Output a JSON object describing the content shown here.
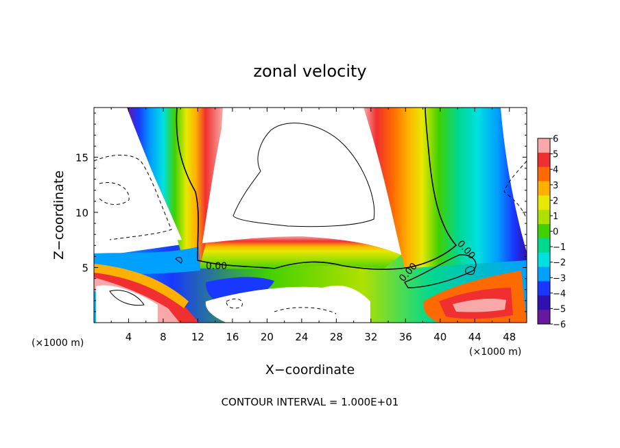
{
  "chart_data": {
    "type": "heatmap",
    "title": "zonal velocity",
    "xlabel": "X−coordinate",
    "ylabel": "Z−coordinate",
    "x_unit_left": "(×1000 m)",
    "x_unit_right": "(×1000 m)",
    "footer": "CONTOUR INTERVAL = 1.000E+01",
    "xlim": [
      0,
      50
    ],
    "ylim": [
      0,
      19.5
    ],
    "xticks": [
      "4",
      "8",
      "12",
      "16",
      "20",
      "24",
      "28",
      "32",
      "36",
      "40",
      "44",
      "48"
    ],
    "yticks": [
      "5",
      "10",
      "15"
    ],
    "contour_labels": [
      "0.00",
      "0.00",
      "0.00"
    ],
    "colorbar": {
      "min": -6,
      "max": 6,
      "tick_labels": [
        "6",
        "5",
        "4",
        "3",
        "2",
        "1",
        "0",
        "−1",
        "−2",
        "−3",
        "−4",
        "−5",
        "−6"
      ],
      "colors": [
        "#f8a8a8",
        "#f03030",
        "#ff6a00",
        "#ffb000",
        "#e8e800",
        "#b0e000",
        "#40d000",
        "#00d890",
        "#00e0e0",
        "#00a0ff",
        "#1838ff",
        "#3010b0",
        "#6818a0"
      ]
    }
  }
}
